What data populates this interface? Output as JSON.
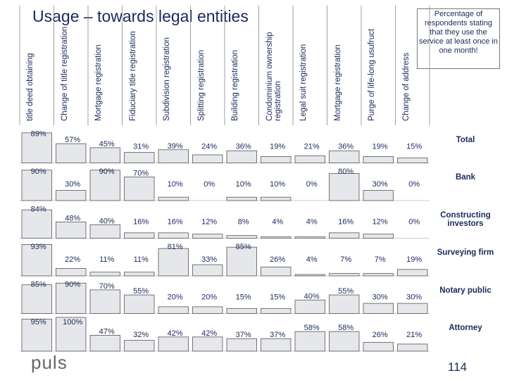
{
  "chart_data": {
    "type": "bar",
    "title": "Usage – towards legal entities",
    "note": "Percentage of respondents stating that they use the service at least once in one month!",
    "categories": [
      "title deed obtaining",
      "Change of title registration",
      "Mortgage registration",
      "Fiduciary title registration",
      "Subdivision registration",
      "Splitting registration",
      "Building registration",
      "Condominium ownership registration",
      "Legal suit registration",
      "Mortgage registration",
      "Purge of life-long usufruct",
      "Change of address"
    ],
    "ylim": [
      0,
      100
    ],
    "series": [
      {
        "name": "Total",
        "color": "#e6e7ea",
        "values": [
          89,
          57,
          45,
          31,
          39,
          24,
          36,
          19,
          21,
          36,
          19,
          15
        ],
        "value_labels": [
          "89%",
          "57%",
          "45%",
          "31%",
          "39%",
          "24%",
          "36%",
          "19%",
          "21%",
          "36%",
          "19%",
          "15%"
        ]
      },
      {
        "name": "Bank",
        "color": "#e6e7ea",
        "values": [
          90,
          30,
          90,
          70,
          10,
          0,
          10,
          10,
          0,
          80,
          30,
          0
        ],
        "value_labels": [
          "90%",
          "30%",
          "90%",
          "70%",
          "10%",
          "0%",
          "10%",
          "10%",
          "0%",
          "80%",
          "30%",
          "0%"
        ]
      },
      {
        "name": "Constructing investors",
        "color": "#e6e7ea",
        "values": [
          84,
          48,
          40,
          16,
          16,
          12,
          8,
          4,
          4,
          16,
          12,
          0
        ],
        "value_labels": [
          "84%",
          "48%",
          "40%",
          "16%",
          "16%",
          "12%",
          "8%",
          "4%",
          "4%",
          "16%",
          "12%",
          "0%"
        ]
      },
      {
        "name": "Surveying firm",
        "color": "#e6e7ea",
        "values": [
          93,
          22,
          11,
          11,
          81,
          33,
          85,
          26,
          4,
          7,
          7,
          19
        ],
        "value_labels": [
          "93%",
          "22%",
          "11%",
          "11%",
          "81%",
          "33%",
          "85%",
          "26%",
          "4%",
          "7%",
          "7%",
          "19%"
        ]
      },
      {
        "name": "Notary public",
        "color": "#e6e7ea",
        "values": [
          85,
          90,
          70,
          55,
          20,
          20,
          15,
          15,
          40,
          55,
          30,
          30
        ],
        "value_labels": [
          "85%",
          "90%",
          "70%",
          "55%",
          "20%",
          "20%",
          "15%",
          "15%",
          "40%",
          "55%",
          "30%",
          "30%"
        ]
      },
      {
        "name": "Attorney",
        "color": "#e6e7ea",
        "values": [
          95,
          100,
          47,
          32,
          42,
          42,
          37,
          37,
          58,
          58,
          26,
          21
        ],
        "value_labels": [
          "95%",
          "100%",
          "47%",
          "32%",
          "42%",
          "42%",
          "37%",
          "37%",
          "58%",
          "58%",
          "26%",
          "21%"
        ]
      }
    ],
    "page_number": "114",
    "logo": "puls"
  }
}
